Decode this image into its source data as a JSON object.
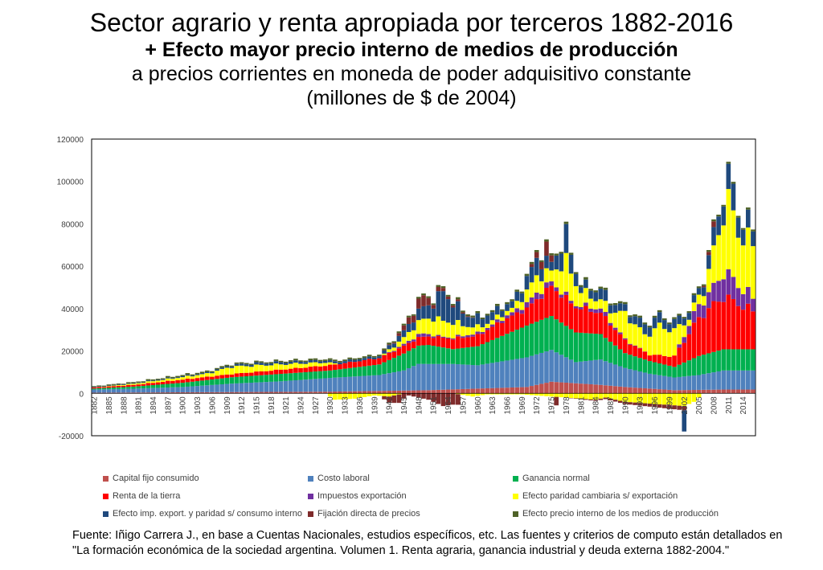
{
  "title_lines": [
    "Sector agrario y renta apropiada por terceros 1882-2016",
    "+ Efecto mayor precio interno de medios de producción",
    "a precios corrientes en moneda de poder adquisitivo constante",
    "(millones de $ de 2004)"
  ],
  "source_lines": [
    "Fuente: Iñigo Carrera J.,  en base a Cuentas Nacionales, estudios específicos, etc. Las fuentes y criterios de computo están detallados en",
    "\"La formación económica de la sociedad argentina. Volumen 1. Renta agraria, ganancia industrial y deuda externa 1882-2004.\""
  ],
  "chart_data": {
    "type": "bar",
    "stacked": true,
    "ylim": [
      -20000,
      120000
    ],
    "yticks": [
      -20000,
      0,
      20000,
      40000,
      60000,
      80000,
      100000,
      120000
    ],
    "x_start": 1882,
    "x_end": 2016,
    "xtick_labels": [
      "1882",
      "1885",
      "1888",
      "1891",
      "1894",
      "1897",
      "1900",
      "1903",
      "1906",
      "1909",
      "1912",
      "1915",
      "1918",
      "1921",
      "1924",
      "1927",
      "1930",
      "1933",
      "1936",
      "1939",
      "1942",
      "1945",
      "1948",
      "1951",
      "1954",
      "1957",
      "1960",
      "1963",
      "1966",
      "1969",
      "1972",
      "1975",
      "1978",
      "1981",
      "1984",
      "1987",
      "1990",
      "1993",
      "1996",
      "1999",
      "2002",
      "2005",
      "2008",
      "2011",
      "2014"
    ],
    "legend_position": "bottom",
    "grid": false,
    "series": [
      {
        "name": "Capital fijo consumido",
        "color": "#c0504d",
        "key_years": [
          1882,
          1900,
          1930,
          1950,
          1970,
          1975,
          1985,
          1990,
          2000,
          2010,
          2016
        ],
        "key_values": [
          300,
          500,
          800,
          1500,
          3000,
          5500,
          4000,
          3000,
          1500,
          1800,
          1800
        ]
      },
      {
        "name": "Costo laboral",
        "color": "#4f81bd",
        "key_years": [
          1882,
          1890,
          1900,
          1910,
          1920,
          1930,
          1940,
          1945,
          1948,
          1955,
          1960,
          1965,
          1970,
          1975,
          1980,
          1985,
          1990,
          1995,
          2000,
          2005,
          2010,
          2016
        ],
        "key_values": [
          1500,
          1800,
          2500,
          4000,
          5000,
          6500,
          7500,
          9500,
          12500,
          12000,
          11000,
          12500,
          14000,
          15000,
          10000,
          12000,
          9000,
          7000,
          6000,
          7000,
          9000,
          9000
        ]
      },
      {
        "name": "Ganancia normal",
        "color": "#00b050",
        "key_years": [
          1882,
          1890,
          1900,
          1910,
          1920,
          1930,
          1940,
          1945,
          1950,
          1955,
          1960,
          1965,
          1970,
          1975,
          1980,
          1985,
          1990,
          1995,
          2000,
          2005,
          2010,
          2016
        ],
        "key_values": [
          500,
          1000,
          2000,
          3000,
          3500,
          3500,
          5000,
          8000,
          9000,
          7000,
          9000,
          12000,
          15000,
          16000,
          14000,
          12000,
          7000,
          6000,
          5000,
          9000,
          10000,
          10000
        ]
      },
      {
        "name": "Renta de la tierra",
        "color": "#ff0000",
        "key_years": [
          1882,
          1890,
          1900,
          1910,
          1920,
          1930,
          1940,
          1945,
          1950,
          1955,
          1960,
          1965,
          1970,
          1975,
          1980,
          1985,
          1990,
          1995,
          2000,
          2005,
          2010,
          2016
        ],
        "key_values": [
          500,
          800,
          1500,
          1500,
          2000,
          2500,
          3000,
          3500,
          4000,
          5000,
          5000,
          7000,
          8000,
          14000,
          12000,
          10000,
          6000,
          3000,
          5000,
          18000,
          25000,
          18000
        ]
      },
      {
        "name": "Impuestos exportación",
        "color": "#7030a0",
        "key_years": [
          1882,
          1940,
          1946,
          1949,
          1952,
          1955,
          1958,
          1962,
          1967,
          1972,
          1975,
          1980,
          1985,
          1990,
          1995,
          2000,
          2002,
          2005,
          2008,
          2010,
          2013,
          2016
        ],
        "key_values": [
          0,
          0,
          1000,
          1500,
          500,
          500,
          1000,
          1000,
          1500,
          3000,
          2000,
          1000,
          2000,
          500,
          0,
          0,
          3000,
          6000,
          8000,
          12000,
          9000,
          6000
        ]
      },
      {
        "name": "Efecto paridad cambiaria s/ exportación",
        "color": "#ffff00",
        "key_years": [
          1882,
          1905,
          1910,
          1915,
          1920,
          1925,
          1929,
          1932,
          1940,
          1945,
          1948,
          1951,
          1955,
          1958,
          1962,
          1967,
          1972,
          1975,
          1978,
          1981,
          1984,
          1987,
          1990,
          1994,
          1997,
          2000,
          2003,
          2006,
          2009,
          2011,
          2013,
          2016
        ],
        "key_values": [
          0,
          1500,
          3500,
          3000,
          2500,
          2000,
          1500,
          0,
          0,
          3000,
          6000,
          8000,
          7000,
          4000,
          2000,
          2000,
          8000,
          5000,
          16000,
          7000,
          4000,
          5000,
          12000,
          8000,
          14000,
          12000,
          3000,
          5000,
          22000,
          35000,
          25000,
          25000
        ]
      },
      {
        "name": "Efecto imp. export. y paridad s/ consumo interno",
        "color": "#1f497d",
        "key_years": [
          1882,
          1905,
          1915,
          1925,
          1940,
          1945,
          1948,
          1951,
          1953,
          1955,
          1958,
          1962,
          1967,
          1972,
          1975,
          1978,
          1981,
          1985,
          1990,
          1995,
          2000,
          2005,
          2008,
          2010,
          2012,
          2014,
          2016
        ],
        "key_values": [
          200,
          500,
          1000,
          1000,
          1000,
          3000,
          5000,
          7000,
          14000,
          9000,
          5000,
          4000,
          3000,
          8000,
          4000,
          12000,
          3000,
          5000,
          3000,
          5000,
          4000,
          3000,
          8000,
          10000,
          12000,
          8000,
          7000
        ]
      },
      {
        "name": "Fijación directa de precios",
        "color": "#7f2b2b",
        "key_years": [
          1882,
          1940,
          1943,
          1946,
          1949,
          1951,
          1955,
          1960,
          1970,
          1973,
          1974,
          1976,
          1980,
          2005,
          2007,
          2008,
          2009,
          2016
        ],
        "key_values": [
          0,
          0,
          500,
          3000,
          5000,
          2000,
          1000,
          0,
          0,
          4000,
          6000,
          0,
          0,
          0,
          1500,
          2500,
          0,
          0
        ]
      },
      {
        "name": "Efecto precio interno de los medios de producción",
        "color": "#4f6228",
        "key_years": [
          1882,
          1900,
          1950,
          1980,
          2000,
          2016
        ],
        "key_values": [
          400,
          600,
          800,
          1000,
          800,
          900
        ]
      }
    ],
    "negative_series": [
      {
        "name": "Efecto paridad cambiaria s/ exportación",
        "color": "#ffff00",
        "key_years": [
          1882,
          1929,
          1931,
          1935,
          1939,
          1942,
          1945,
          1955,
          1959,
          1962,
          1969,
          1972,
          1984,
          1986,
          1990,
          2002,
          2004,
          2006,
          2016
        ],
        "key_values": [
          0,
          0,
          -3000,
          -2500,
          -1000,
          -1500,
          0,
          0,
          -1500,
          -500,
          -500,
          -1000,
          -3000,
          -2000,
          -4000,
          -6000,
          -4000,
          0,
          0
        ]
      },
      {
        "name": "Fijación directa de precios",
        "color": "#7f2b2b",
        "key_years": [
          1882,
          1940,
          1942,
          1944,
          1946,
          1950,
          1953,
          1956,
          1957,
          1975,
          1976,
          1977,
          2002,
          2003,
          2016
        ],
        "key_values": [
          0,
          0,
          -3000,
          -4000,
          -1000,
          -3000,
          -6000,
          -5000,
          0,
          0,
          -4000,
          0,
          -2000,
          0,
          0
        ]
      },
      {
        "name": "Efecto imp. export. y paridad s/ consumo interno",
        "color": "#1f497d",
        "key_years": [
          1882,
          2001,
          2002,
          2003,
          2016
        ],
        "key_values": [
          0,
          0,
          -10000,
          0,
          0
        ]
      }
    ]
  }
}
